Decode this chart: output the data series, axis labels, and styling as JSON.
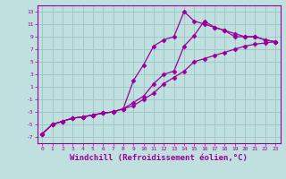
{
  "background_color": "#c0e0e0",
  "grid_color": "#a0c8c8",
  "line_color": "#990099",
  "marker": "D",
  "markersize": 2.5,
  "linewidth": 0.9,
  "xlabel": "Windchill (Refroidissement éolien,°C)",
  "xlabel_fontsize": 6.5,
  "ytick_labels": [
    "-7",
    "-5",
    "-3",
    "-1",
    "1",
    "3",
    "5",
    "7",
    "9",
    "11",
    "13"
  ],
  "ytick_values": [
    -7,
    -5,
    -3,
    -1,
    1,
    3,
    5,
    7,
    9,
    11,
    13
  ],
  "xlim": [
    -0.5,
    23.5
  ],
  "ylim": [
    -8,
    14
  ],
  "xtick_values": [
    0,
    1,
    2,
    3,
    4,
    5,
    6,
    7,
    8,
    9,
    10,
    11,
    12,
    13,
    14,
    15,
    16,
    17,
    18,
    19,
    20,
    21,
    22,
    23
  ],
  "lines": [
    {
      "x": [
        0,
        1,
        2,
        3,
        4,
        5,
        6,
        7,
        8,
        9,
        10,
        11,
        12,
        13,
        14,
        15,
        16,
        17,
        18,
        19,
        20,
        21,
        22,
        23
      ],
      "y": [
        -6.5,
        -5.0,
        -4.5,
        -4.0,
        -3.8,
        -3.5,
        -3.2,
        -3.0,
        -2.5,
        -2.0,
        -1.0,
        0.0,
        1.5,
        2.5,
        3.5,
        5.0,
        5.5,
        6.0,
        6.5,
        7.0,
        7.5,
        7.8,
        8.0,
        8.2
      ]
    },
    {
      "x": [
        0,
        1,
        2,
        3,
        4,
        5,
        6,
        7,
        8,
        9,
        10,
        11,
        12,
        13,
        14,
        15,
        16,
        17,
        18,
        19,
        20,
        21,
        22,
        23
      ],
      "y": [
        -6.5,
        -5.0,
        -4.5,
        -4.0,
        -3.8,
        -3.5,
        -3.2,
        -3.0,
        -2.5,
        2.0,
        4.5,
        7.5,
        8.5,
        9.0,
        13.0,
        11.5,
        11.0,
        10.5,
        10.0,
        9.0,
        9.0,
        9.0,
        8.5,
        8.2
      ]
    },
    {
      "x": [
        0,
        1,
        2,
        3,
        4,
        5,
        6,
        7,
        8,
        9,
        10,
        11,
        12,
        13,
        14,
        15,
        16,
        17,
        18,
        19,
        20,
        21,
        22,
        23
      ],
      "y": [
        -6.5,
        -5.0,
        -4.5,
        -4.0,
        -3.8,
        -3.5,
        -3.2,
        -3.0,
        -2.5,
        -1.5,
        -0.5,
        1.5,
        3.0,
        3.5,
        7.5,
        9.2,
        11.5,
        10.5,
        10.0,
        9.5,
        9.0,
        9.0,
        8.5,
        8.2
      ]
    }
  ]
}
